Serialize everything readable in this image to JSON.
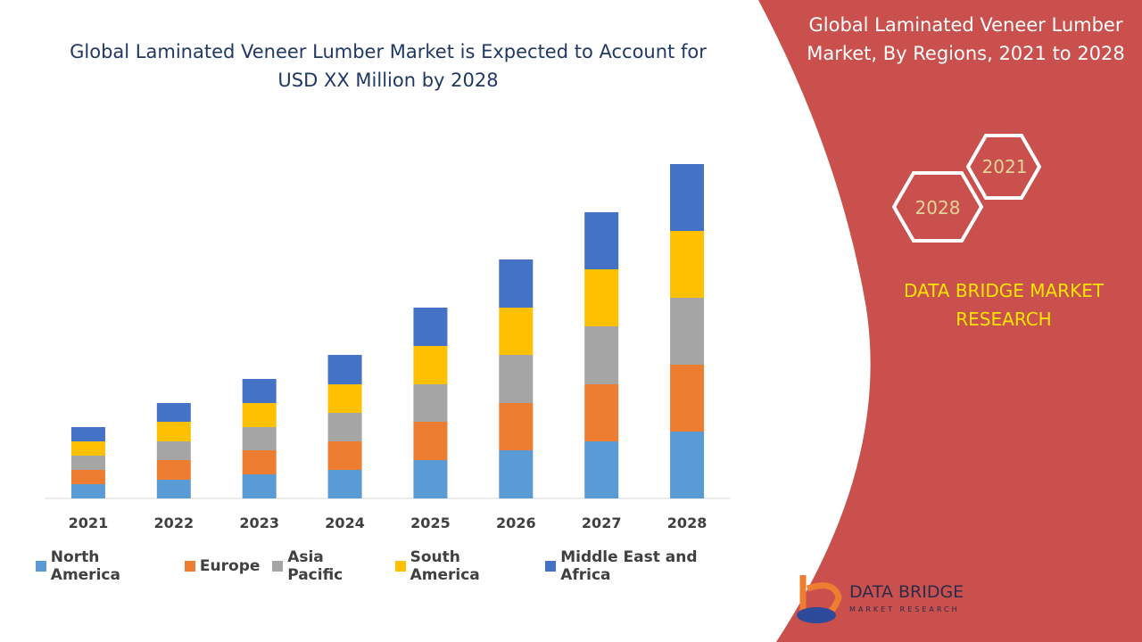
{
  "chart_data": {
    "type": "bar",
    "stacked": true,
    "title": "Global Laminated Veneer Lumber Market is Expected to Account for USD XX Million by 2028",
    "categories": [
      "2021",
      "2022",
      "2023",
      "2024",
      "2025",
      "2026",
      "2027",
      "2028"
    ],
    "series": [
      {
        "name": "North America",
        "color": "#5b9bd5",
        "values": [
          16,
          21,
          27,
          32,
          43,
          54,
          64,
          75
        ]
      },
      {
        "name": "Europe",
        "color": "#ed7d31",
        "values": [
          16,
          22,
          27,
          32,
          43,
          53,
          64,
          75
        ]
      },
      {
        "name": "Asia Pacific",
        "color": "#a5a5a5",
        "values": [
          16,
          21,
          26,
          32,
          42,
          54,
          65,
          75
        ]
      },
      {
        "name": "South America",
        "color": "#ffc000",
        "values": [
          16,
          22,
          27,
          32,
          43,
          53,
          64,
          75
        ]
      },
      {
        "name": "Middle East and Africa",
        "color": "#4472c4",
        "values": [
          16,
          21,
          27,
          33,
          43,
          54,
          64,
          75
        ]
      }
    ]
  },
  "side_panel": {
    "title": "Global Laminated Veneer Lumber Market, By Regions, 2021 to 2028",
    "hexagons": [
      "2021",
      "2028"
    ],
    "brand": "DATA BRIDGE MARKET RESEARCH"
  },
  "logo": {
    "name": "DATA BRIDGE",
    "tagline": "MARKET RESEARCH"
  }
}
